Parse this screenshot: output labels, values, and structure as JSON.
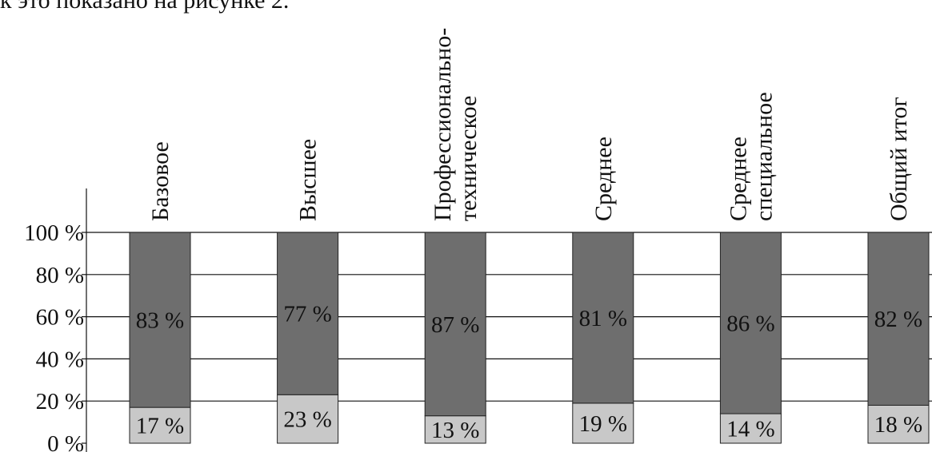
{
  "intro_text": "к это показано на рисунке 2.",
  "chart_data": {
    "type": "bar",
    "stacked": true,
    "percent": true,
    "categories": [
      "Базовое",
      "Высшее",
      "Профессионально-техническое",
      "Среднее",
      "Среднее специальное",
      "Общий итог"
    ],
    "category_label_lines": [
      [
        "Базовое"
      ],
      [
        "Высшее"
      ],
      [
        "Профессионально-",
        "техническое"
      ],
      [
        "Среднее"
      ],
      [
        "Среднее",
        "специальное"
      ],
      [
        "Общий итог"
      ]
    ],
    "series": [
      {
        "values": [
          17,
          23,
          13,
          19,
          14,
          18
        ],
        "labels": [
          "17 %",
          "23 %",
          "13 %",
          "19 %",
          "14 %",
          "18 %"
        ],
        "color": "#c8c8c8"
      },
      {
        "values": [
          83,
          77,
          87,
          81,
          86,
          82
        ],
        "labels": [
          "83 %",
          "77 %",
          "87 %",
          "81 %",
          "86 %",
          "82 %"
        ],
        "color": "#6e6e6e"
      }
    ],
    "y_ticks": [
      "0 %",
      "20 %",
      "40 %",
      "60 %",
      "80 %",
      "100 %"
    ],
    "ylim": [
      0,
      100
    ],
    "grid": true,
    "legend": "none",
    "title": "",
    "xlabel": "",
    "ylabel": ""
  }
}
